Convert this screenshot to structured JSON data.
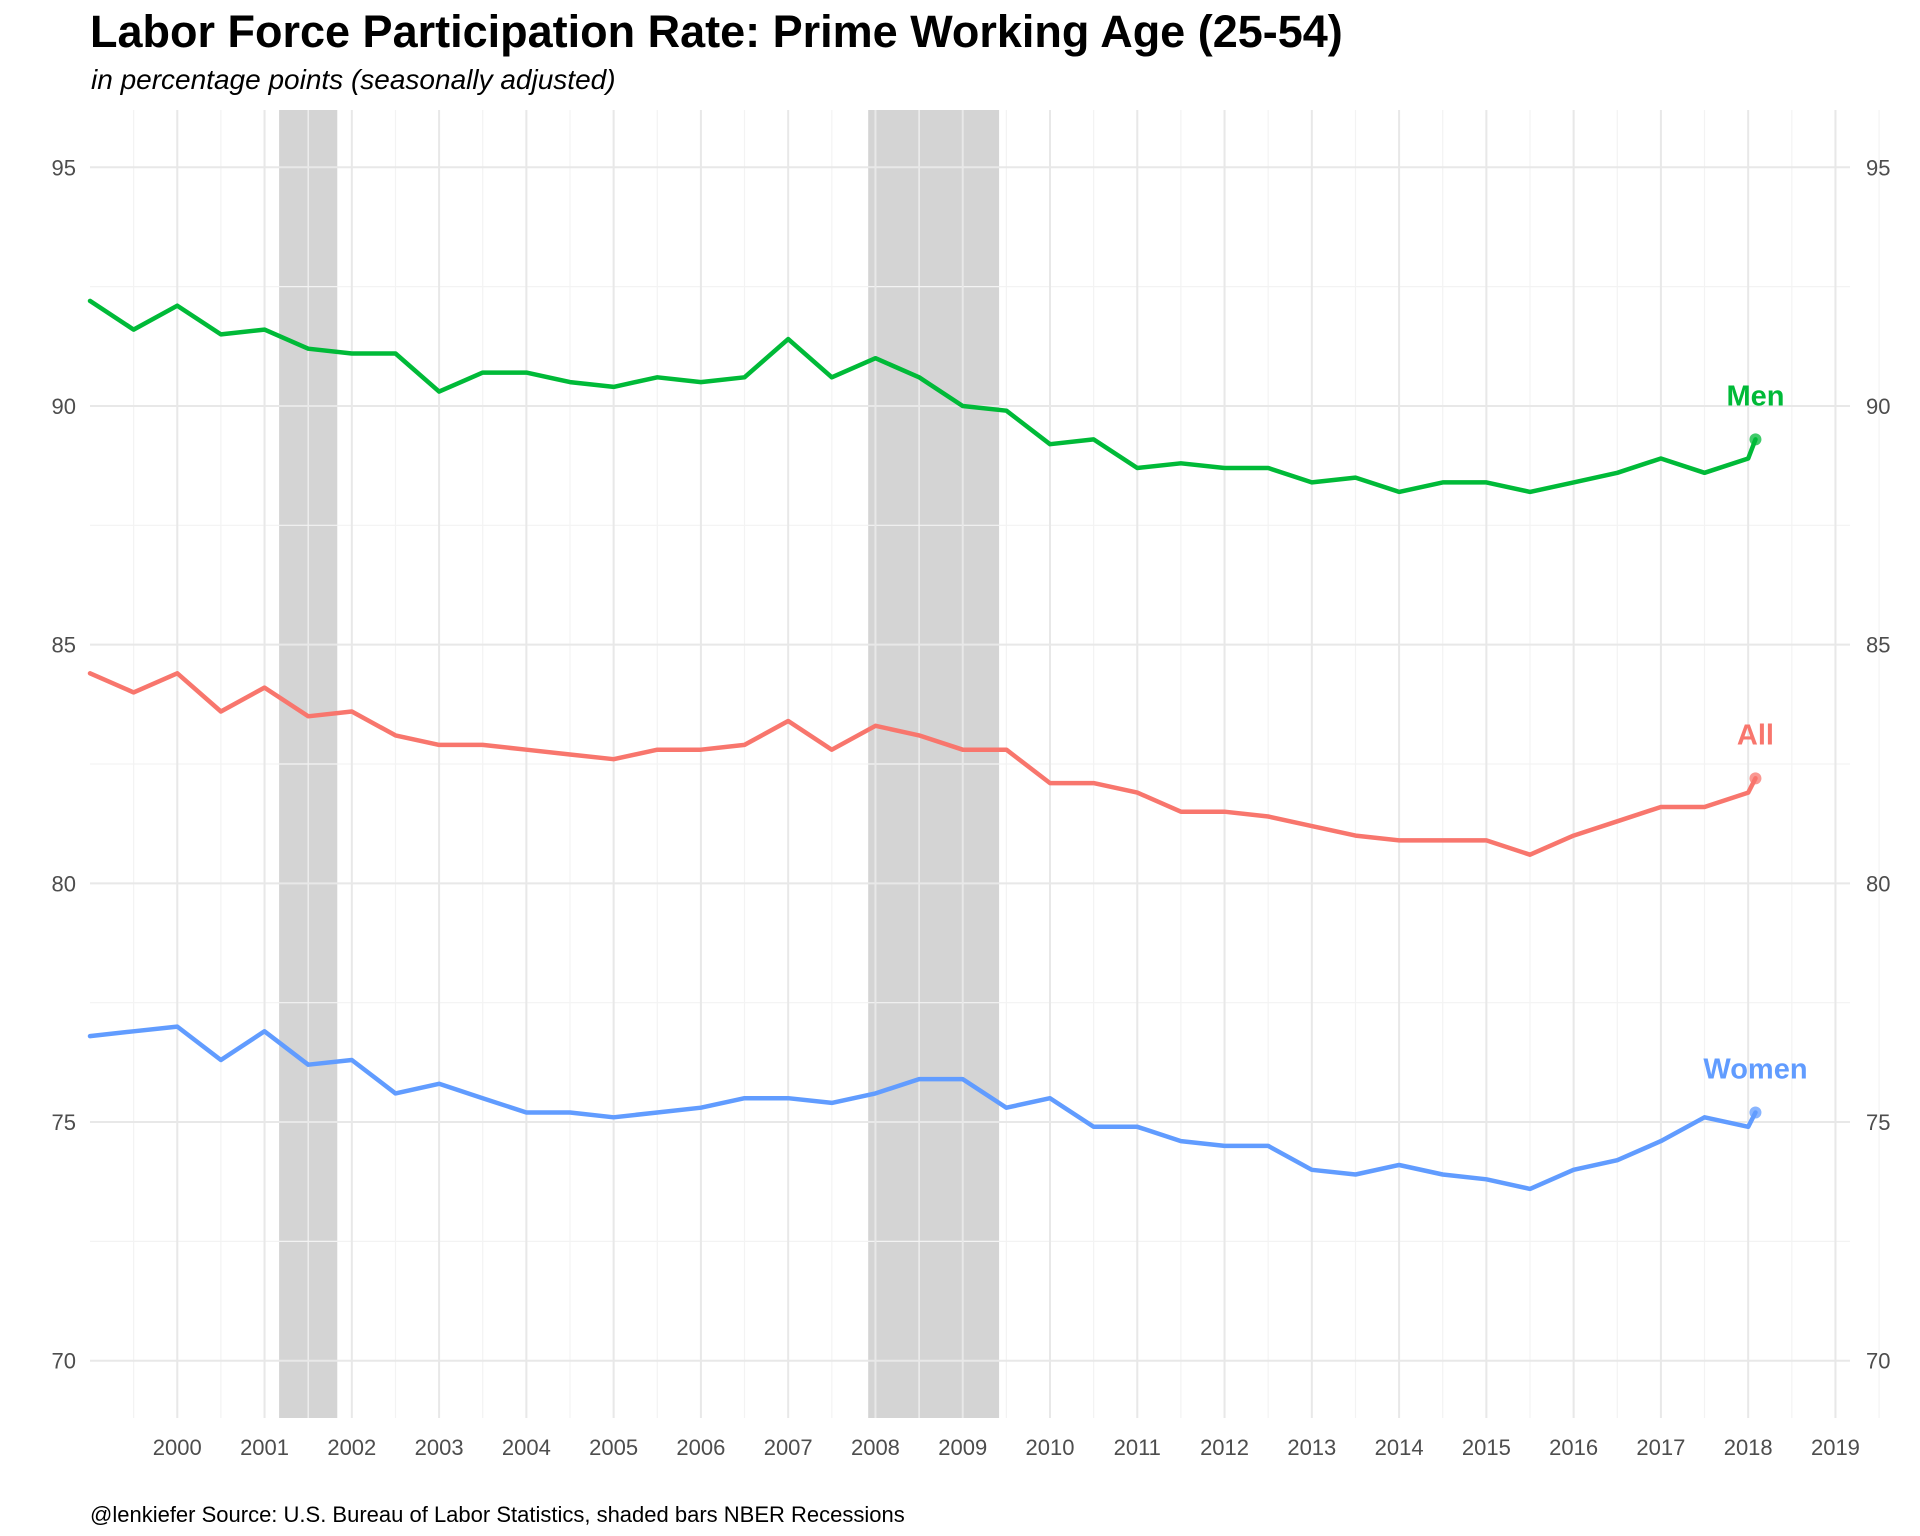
{
  "chart_data": {
    "type": "line",
    "title": "Labor Force Participation Rate: Prime Working Age (25-54)",
    "subtitle": "in percentage points (seasonally adjusted)",
    "caption": "@lenkiefer Source: U.S. Bureau of Labor Statistics, shaded bars NBER Recessions",
    "xlabel": "",
    "ylabel": "",
    "x_range": [
      "1999-01",
      "2019-03"
    ],
    "ylim": [
      68.8,
      96.2
    ],
    "x_ticks": [
      "2000",
      "2001",
      "2002",
      "2003",
      "2004",
      "2005",
      "2006",
      "2007",
      "2008",
      "2009",
      "2010",
      "2011",
      "2012",
      "2013",
      "2014",
      "2015",
      "2016",
      "2017",
      "2018",
      "2019"
    ],
    "y_ticks": [
      "70",
      "75",
      "80",
      "85",
      "90",
      "95"
    ],
    "grid": true,
    "recessions": [
      {
        "start": "2001-03",
        "end": "2001-11"
      },
      {
        "start": "2007-12",
        "end": "2009-06"
      }
    ],
    "series": [
      {
        "name": "Men",
        "color": "#00ba38",
        "x": [
          "1999-01",
          "1999-07",
          "2000-01",
          "2000-07",
          "2001-01",
          "2001-07",
          "2002-01",
          "2002-07",
          "2003-01",
          "2003-07",
          "2004-01",
          "2004-07",
          "2005-01",
          "2005-07",
          "2006-01",
          "2006-07",
          "2007-01",
          "2007-07",
          "2008-01",
          "2008-07",
          "2009-01",
          "2009-07",
          "2010-01",
          "2010-07",
          "2011-01",
          "2011-07",
          "2012-01",
          "2012-07",
          "2013-01",
          "2013-07",
          "2014-01",
          "2014-07",
          "2015-01",
          "2015-07",
          "2016-01",
          "2016-07",
          "2017-01",
          "2017-07",
          "2018-01",
          "2018-02"
        ],
        "values": [
          92.2,
          91.6,
          92.1,
          91.5,
          91.6,
          91.2,
          91.1,
          91.1,
          90.3,
          90.7,
          90.7,
          90.5,
          90.4,
          90.6,
          90.5,
          90.6,
          91.4,
          90.6,
          91.0,
          90.6,
          90.0,
          89.9,
          89.2,
          89.3,
          88.7,
          88.8,
          88.7,
          88.7,
          88.4,
          88.5,
          88.2,
          88.4,
          88.4,
          88.2,
          88.4,
          88.6,
          88.9,
          88.6,
          88.9,
          89.3
        ]
      },
      {
        "name": "All",
        "color": "#f8766d",
        "x": [
          "1999-01",
          "1999-07",
          "2000-01",
          "2000-07",
          "2001-01",
          "2001-07",
          "2002-01",
          "2002-07",
          "2003-01",
          "2003-07",
          "2004-01",
          "2004-07",
          "2005-01",
          "2005-07",
          "2006-01",
          "2006-07",
          "2007-01",
          "2007-07",
          "2008-01",
          "2008-07",
          "2009-01",
          "2009-07",
          "2010-01",
          "2010-07",
          "2011-01",
          "2011-07",
          "2012-01",
          "2012-07",
          "2013-01",
          "2013-07",
          "2014-01",
          "2014-07",
          "2015-01",
          "2015-07",
          "2016-01",
          "2016-07",
          "2017-01",
          "2017-07",
          "2018-01",
          "2018-02"
        ],
        "values": [
          84.4,
          84.0,
          84.4,
          83.6,
          84.1,
          83.5,
          83.6,
          83.1,
          82.9,
          82.9,
          82.8,
          82.7,
          82.6,
          82.8,
          82.8,
          82.9,
          83.4,
          82.8,
          83.3,
          83.1,
          82.8,
          82.8,
          82.1,
          82.1,
          81.9,
          81.5,
          81.5,
          81.4,
          81.2,
          81.0,
          80.9,
          80.9,
          80.9,
          80.6,
          81.0,
          81.3,
          81.6,
          81.6,
          81.9,
          82.2
        ]
      },
      {
        "name": "Women",
        "color": "#619cff",
        "x": [
          "1999-01",
          "1999-07",
          "2000-01",
          "2000-07",
          "2001-01",
          "2001-07",
          "2002-01",
          "2002-07",
          "2003-01",
          "2003-07",
          "2004-01",
          "2004-07",
          "2005-01",
          "2005-07",
          "2006-01",
          "2006-07",
          "2007-01",
          "2007-07",
          "2008-01",
          "2008-07",
          "2009-01",
          "2009-07",
          "2010-01",
          "2010-07",
          "2011-01",
          "2011-07",
          "2012-01",
          "2012-07",
          "2013-01",
          "2013-07",
          "2014-01",
          "2014-07",
          "2015-01",
          "2015-07",
          "2016-01",
          "2016-07",
          "2017-01",
          "2017-07",
          "2018-01",
          "2018-02"
        ],
        "values": [
          76.8,
          76.9,
          77.0,
          76.3,
          76.9,
          76.2,
          76.3,
          75.6,
          75.8,
          75.5,
          75.2,
          75.2,
          75.1,
          75.2,
          75.3,
          75.5,
          75.5,
          75.4,
          75.6,
          75.9,
          75.9,
          75.3,
          75.5,
          74.9,
          74.9,
          74.6,
          74.5,
          74.5,
          74.0,
          73.9,
          74.1,
          73.9,
          73.8,
          73.6,
          74.0,
          74.2,
          74.6,
          75.1,
          74.9,
          75.2
        ]
      }
    ]
  }
}
